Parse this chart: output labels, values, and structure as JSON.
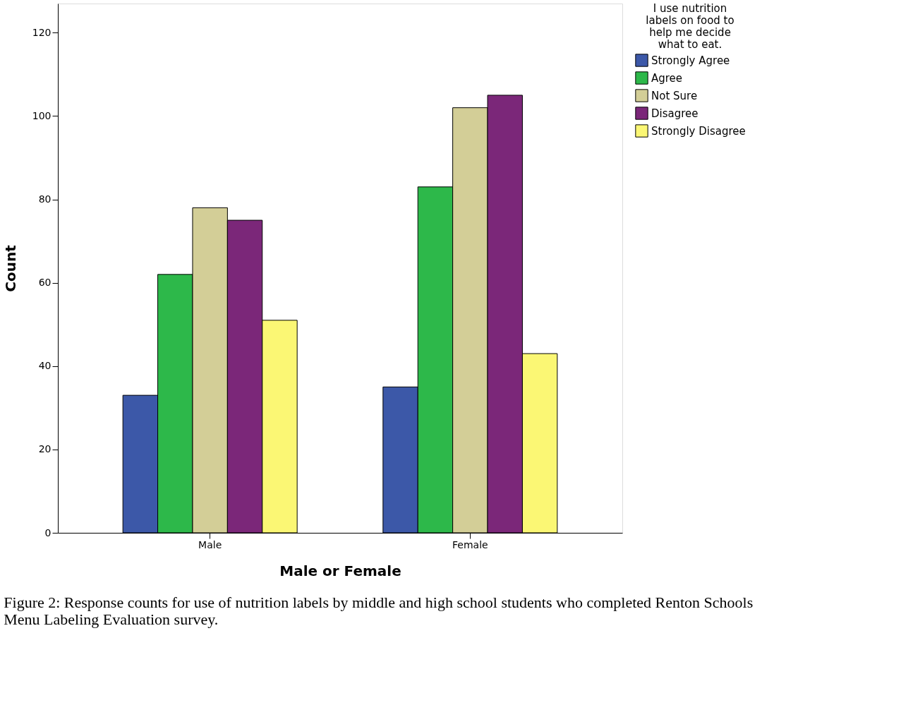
{
  "chart_data": {
    "type": "bar",
    "categories": [
      "Male",
      "Female"
    ],
    "series": [
      {
        "name": "Strongly Agree",
        "color": "#3c58a8",
        "values": [
          33,
          35
        ]
      },
      {
        "name": "Agree",
        "color": "#2db84a",
        "values": [
          62,
          83
        ]
      },
      {
        "name": "Not Sure",
        "color": "#d3ce97",
        "values": [
          78,
          102
        ]
      },
      {
        "name": "Disagree",
        "color": "#7b2779",
        "values": [
          75,
          105
        ]
      },
      {
        "name": "Strongly Disagree",
        "color": "#fbf774",
        "values": [
          51,
          43
        ]
      }
    ],
    "xlabel": "Male or Female",
    "ylabel": "Count",
    "legend_title": "I use nutrition labels on food to help me decide what to eat.",
    "ylim": [
      0,
      127
    ],
    "yticks": [
      0,
      20,
      40,
      60,
      80,
      100,
      120
    ],
    "grid": false,
    "legend": "right",
    "annotations": [
      "Figure 2: Response counts for use of nutrition labels by middle and high school students who completed Renton Schools Menu Labeling Evaluation survey."
    ]
  }
}
